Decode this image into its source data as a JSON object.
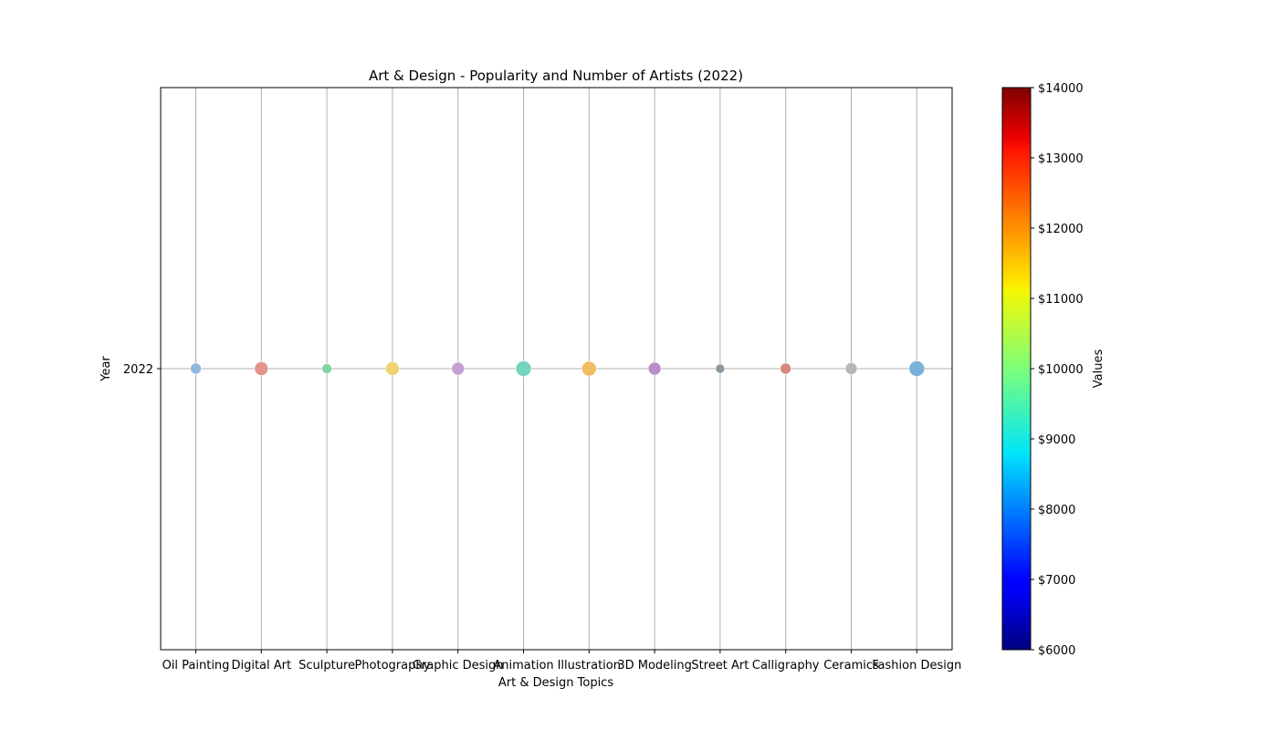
{
  "chart_data": {
    "type": "scatter",
    "title": "Art & Design - Popularity and Number of Artists (2022)",
    "xlabel": "Art & Design Topics",
    "ylabel": "Year",
    "categories": [
      "Oil Painting",
      "Digital Art",
      "Sculpture",
      "Photography",
      "Graphic Design",
      "Animation",
      "Illustration",
      "3D Modeling",
      "Street Art",
      "Calligraphy",
      "Ceramics",
      "Fashion Design"
    ],
    "y_ticks": [
      "2022"
    ],
    "points": [
      {
        "category": "Oil Painting",
        "year": 2022,
        "color": "#8fb8de"
      },
      {
        "category": "Digital Art",
        "year": 2022,
        "color": "#e4938b"
      },
      {
        "category": "Sculpture",
        "year": 2022,
        "color": "#84d4a3"
      },
      {
        "category": "Photography",
        "year": 2022,
        "color": "#f0d36f"
      },
      {
        "category": "Graphic Design",
        "year": 2022,
        "color": "#c39fd2"
      },
      {
        "category": "Animation",
        "year": 2022,
        "color": "#76d3bd"
      },
      {
        "category": "Illustration",
        "year": 2022,
        "color": "#f2bc61"
      },
      {
        "category": "3D Modeling",
        "year": 2022,
        "color": "#b88dc9"
      },
      {
        "category": "Street Art",
        "year": 2022,
        "color": "#8897a2"
      },
      {
        "category": "Calligraphy",
        "year": 2022,
        "color": "#d7877e"
      },
      {
        "category": "Ceramics",
        "year": 2022,
        "color": "#b4b8b9"
      },
      {
        "category": "Fashion Design",
        "year": 2022,
        "color": "#7ab1d8"
      }
    ],
    "grid": true,
    "colorbar": {
      "label": "Values",
      "min": 6000,
      "max": 14000,
      "ticks": [
        "$6000",
        "$7000",
        "$8000",
        "$9000",
        "$10000",
        "$11000",
        "$12000",
        "$13000",
        "$14000"
      ],
      "colormap": "jet"
    }
  }
}
